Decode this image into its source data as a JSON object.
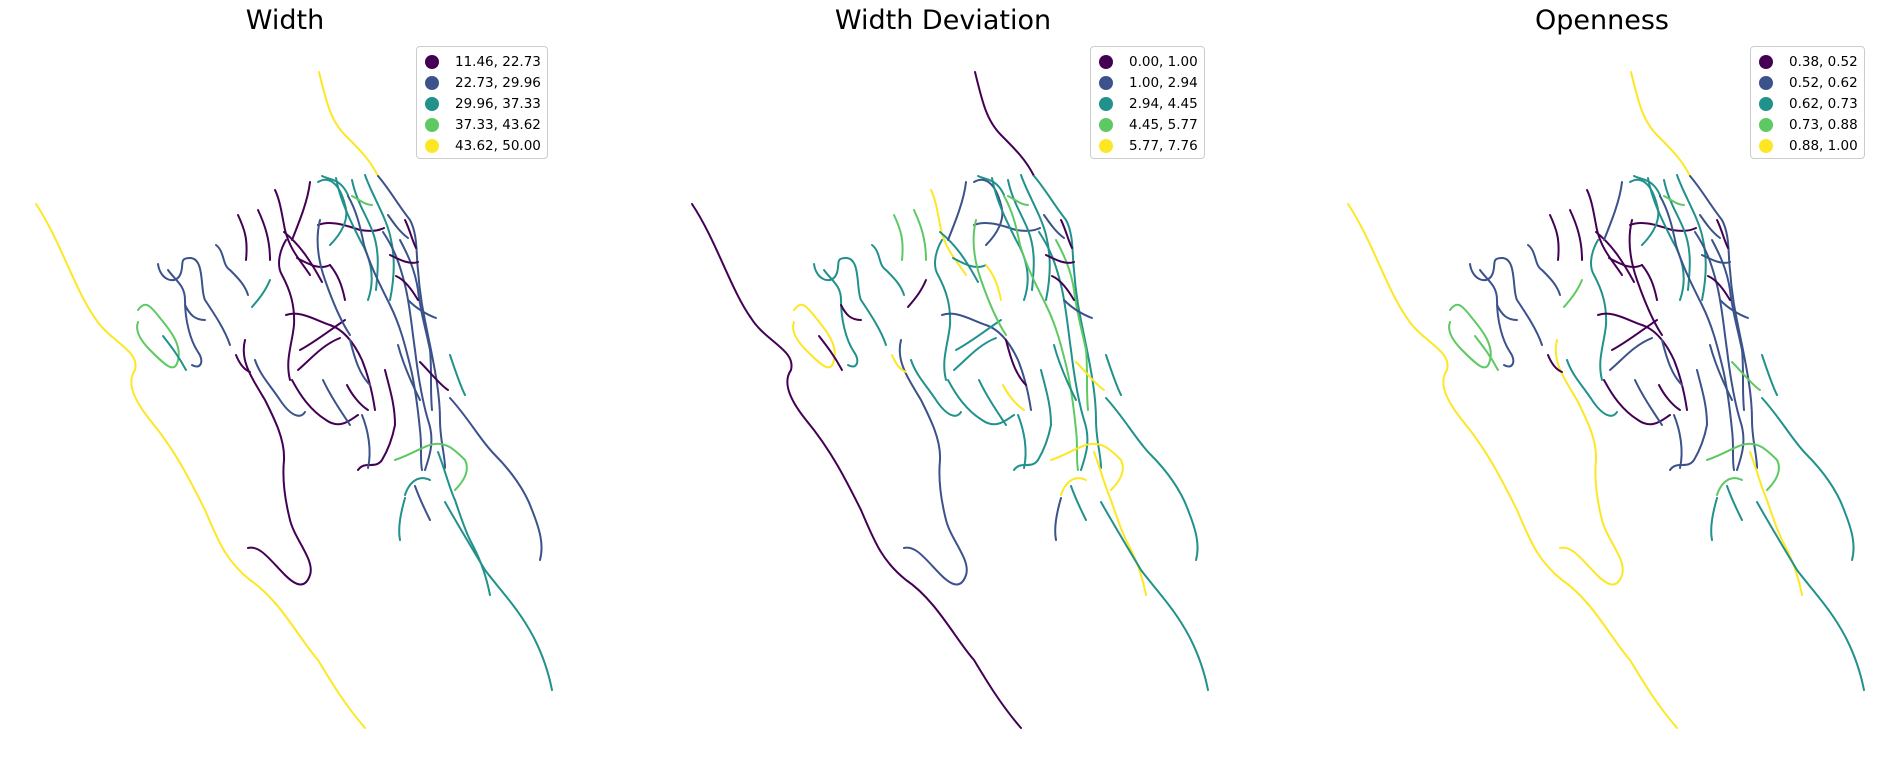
{
  "panels": [
    {
      "title": "Width",
      "legend": [
        {
          "label": "11.46, 22.73",
          "color": "#440154"
        },
        {
          "label": "22.73, 29.96",
          "color": "#3b528b"
        },
        {
          "label": "29.96, 37.33",
          "color": "#21918c"
        },
        {
          "label": "37.33, 43.62",
          "color": "#5ec962"
        },
        {
          "label": "43.62, 50.00",
          "color": "#fde725"
        }
      ]
    },
    {
      "title": "Width Deviation",
      "legend": [
        {
          "label": "0.00, 1.00",
          "color": "#440154"
        },
        {
          "label": "1.00, 2.94",
          "color": "#3b528b"
        },
        {
          "label": "2.94, 4.45",
          "color": "#21918c"
        },
        {
          "label": "4.45, 5.77",
          "color": "#5ec962"
        },
        {
          "label": "5.77, 7.76",
          "color": "#fde725"
        }
      ]
    },
    {
      "title": "Openness",
      "legend": [
        {
          "label": "0.38, 0.52",
          "color": "#440154"
        },
        {
          "label": "0.52, 0.62",
          "color": "#3b528b"
        },
        {
          "label": "0.62, 0.73",
          "color": "#21918c"
        },
        {
          "label": "0.73, 0.88",
          "color": "#5ec962"
        },
        {
          "label": "0.88, 1.00",
          "color": "#fde725"
        }
      ]
    }
  ]
}
